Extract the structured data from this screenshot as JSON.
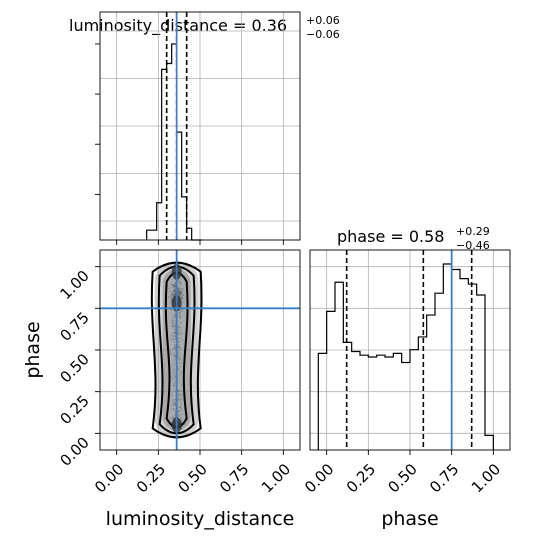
{
  "chart_data": {
    "type": "corner",
    "parameters": [
      "luminosity_distance",
      "phase"
    ],
    "axes_range": {
      "luminosity_distance": [
        -0.1,
        1.1
      ],
      "phase": [
        -0.1,
        1.1
      ]
    },
    "ticks": {
      "luminosity_distance": [
        "0.00",
        "0.25",
        "0.50",
        "0.75",
        "1.00"
      ],
      "phase": [
        "0.00",
        "0.25",
        "0.50",
        "0.75",
        "1.00"
      ],
      "tick_values": [
        0,
        0.25,
        0.5,
        0.75,
        1.0
      ]
    },
    "titles": {
      "luminosity_distance": {
        "name": "luminosity_distance",
        "value": "0.36",
        "plus": "+0.06",
        "minus": "−0.06"
      },
      "phase": {
        "name": "phase",
        "value": "0.58",
        "plus": "+0.29",
        "minus": "−0.46"
      }
    },
    "xlabels": {
      "luminosity_distance": "luminosity_distance",
      "phase": "phase"
    },
    "ylabel": "phase",
    "truth": {
      "luminosity_distance": 0.36,
      "phase": 0.75,
      "color": "#3b7ec4"
    },
    "quantiles": {
      "luminosity_distance": [
        0.3,
        0.36,
        0.42
      ],
      "phase": [
        0.12,
        0.58,
        0.87
      ]
    },
    "hist_luminosity_distance": {
      "bin_edges": [
        0.18,
        0.24,
        0.27,
        0.3,
        0.33,
        0.36,
        0.39,
        0.42,
        0.45,
        0.51
      ],
      "counts": [
        0.05,
        0.19,
        0.87,
        0.9,
        1.0,
        0.55,
        0.22,
        0.06,
        0.0
      ]
    },
    "hist_phase": {
      "bin_edges": [
        -0.05,
        0.0,
        0.05,
        0.1,
        0.15,
        0.2,
        0.25,
        0.3,
        0.35,
        0.4,
        0.45,
        0.5,
        0.55,
        0.6,
        0.65,
        0.7,
        0.75,
        0.8,
        0.85,
        0.9,
        0.95,
        1.0
      ],
      "counts": [
        0.53,
        0.76,
        0.92,
        0.59,
        0.54,
        0.52,
        0.51,
        0.52,
        0.51,
        0.53,
        0.48,
        0.55,
        0.62,
        0.74,
        0.86,
        1.02,
        0.99,
        0.94,
        0.91,
        0.85,
        0.08
      ]
    },
    "density_2d": {
      "core_x": 0.36,
      "core_y_range": [
        0.05,
        1.0
      ],
      "hotspots_y": [
        0.05,
        0.78,
        0.97
      ]
    },
    "grid": true
  }
}
